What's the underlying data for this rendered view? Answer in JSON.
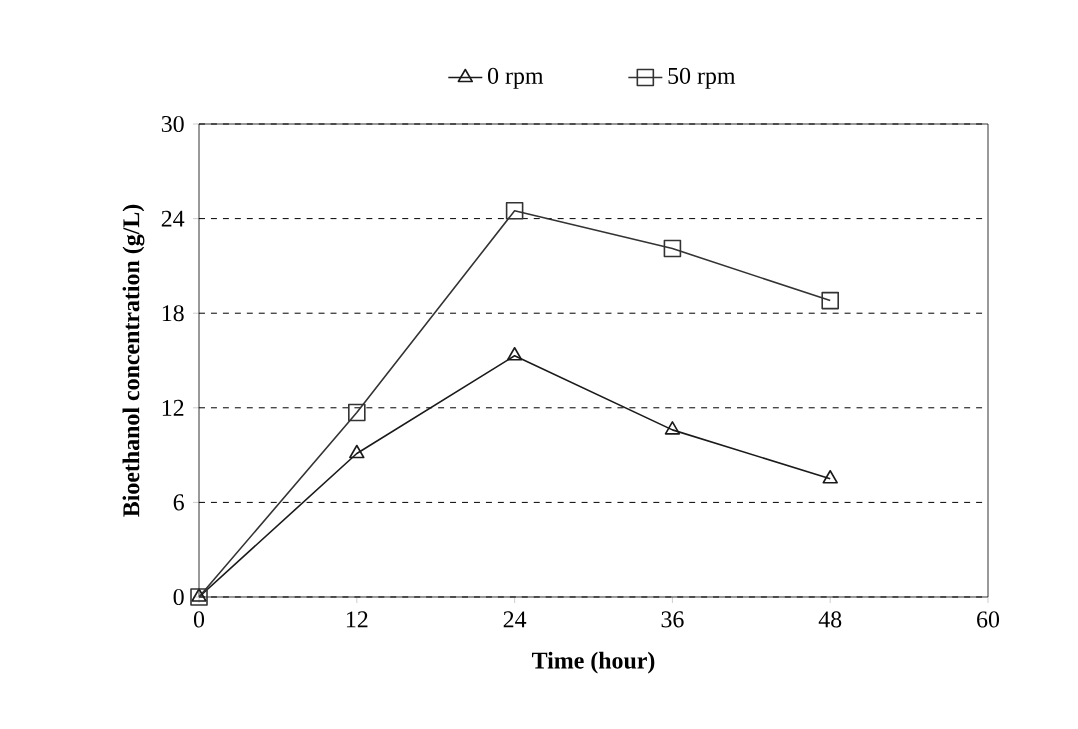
{
  "chart_data": {
    "type": "line",
    "xlabel": "Time (hour)",
    "ylabel": "Bioethanol concentration (g/L)",
    "x": [
      0,
      12,
      24,
      36,
      48
    ],
    "series": [
      {
        "name": "0 rpm",
        "color": "#1a1a1a",
        "marker": "triangle",
        "values": [
          0,
          9.1,
          15.3,
          10.6,
          7.5
        ]
      },
      {
        "name": "50 rpm",
        "color": "#333333",
        "marker": "square",
        "values": [
          0,
          11.7,
          24.5,
          22.1,
          18.8
        ]
      }
    ],
    "xlim": [
      0,
      60
    ],
    "xticks": [
      0,
      12,
      24,
      36,
      48,
      60
    ],
    "ylim": [
      0,
      30
    ],
    "yticks": [
      0,
      6,
      12,
      18,
      24,
      30
    ],
    "grid": "y",
    "legend": "top",
    "line_style": "solid"
  }
}
